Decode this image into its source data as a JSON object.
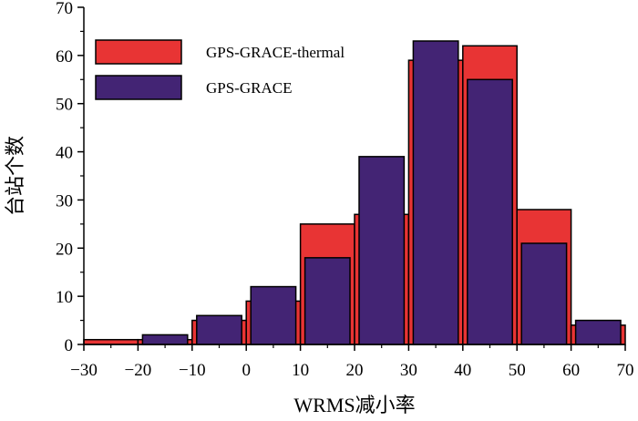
{
  "chart_data": {
    "type": "bar",
    "title": "",
    "xlabel": "WRMS减小率",
    "ylabel": "台站个数",
    "xlim": [
      -30,
      70
    ],
    "ylim": [
      0,
      70
    ],
    "xticks": [
      -30,
      -20,
      -10,
      0,
      10,
      20,
      30,
      40,
      50,
      60,
      70
    ],
    "yticks": [
      0,
      10,
      20,
      30,
      40,
      50,
      60,
      70
    ],
    "xtick_labels": [
      "−30",
      "−20",
      "−10",
      "0",
      "10",
      "20",
      "30",
      "40",
      "50",
      "60",
      "70"
    ],
    "ytick_labels": [
      "0",
      "10",
      "20",
      "30",
      "40",
      "50",
      "60",
      "70"
    ],
    "legend_position": "top-left",
    "series": [
      {
        "name": "GPS-GRACE-thermal",
        "color": "#e83434",
        "bins": [
          [
            -30,
            -20,
            1
          ],
          [
            -20,
            -10,
            1
          ],
          [
            -10,
            0,
            5
          ],
          [
            0,
            10,
            9
          ],
          [
            10,
            20,
            25
          ],
          [
            20,
            30,
            27
          ],
          [
            30,
            40,
            59
          ],
          [
            40,
            50,
            62
          ],
          [
            50,
            60,
            28
          ],
          [
            60,
            70,
            4
          ]
        ]
      },
      {
        "name": "GPS-GRACE",
        "color": "#432474",
        "bins": [
          [
            -20,
            -10,
            2
          ],
          [
            -10,
            0,
            6
          ],
          [
            0,
            10,
            12
          ],
          [
            10,
            20,
            18
          ],
          [
            20,
            30,
            39
          ],
          [
            30,
            40,
            63
          ],
          [
            40,
            50,
            55
          ],
          [
            50,
            60,
            21
          ],
          [
            60,
            70,
            5
          ]
        ]
      }
    ]
  }
}
